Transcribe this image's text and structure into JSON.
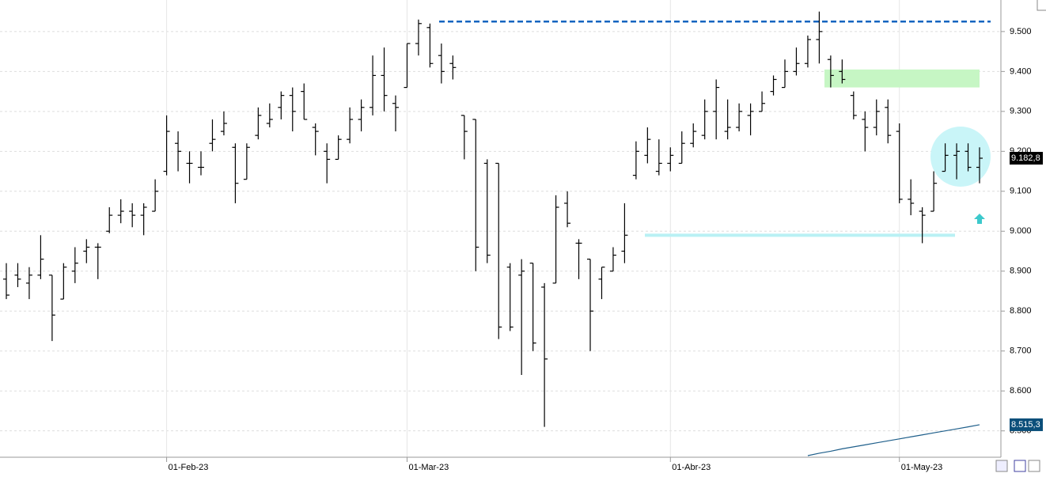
{
  "chart_data": {
    "type": "ohlc",
    "categories": [
      null,
      null,
      null,
      null,
      null,
      null,
      null,
      null,
      null,
      null,
      null,
      null,
      null,
      null,
      "01-Feb-23",
      null,
      null,
      null,
      null,
      null,
      null,
      null,
      null,
      null,
      null,
      null,
      null,
      null,
      null,
      null,
      null,
      null,
      null,
      null,
      null,
      "01-Mar-23",
      null,
      null,
      null,
      null,
      null,
      null,
      null,
      null,
      null,
      null,
      null,
      null,
      null,
      null,
      null,
      null,
      null,
      null,
      null,
      null,
      null,
      null,
      "01-Abr-23",
      null,
      null,
      null,
      null,
      null,
      null,
      null,
      null,
      null,
      null,
      null,
      null,
      null,
      null,
      null,
      null,
      null,
      null,
      null,
      "01-May-23",
      null,
      null,
      null,
      null,
      null,
      null,
      null
    ],
    "series": [
      {
        "color": "#000000",
        "open": [
          8880,
          8890,
          8870,
          8890,
          8890,
          8830,
          8900,
          8950,
          8960,
          9000,
          9040,
          9050,
          9040,
          9050,
          9150,
          9220,
          9170,
          9160,
          9220,
          9250,
          9210,
          9130,
          9240,
          9270,
          9310,
          9340,
          9350,
          9260,
          9200,
          9180,
          9230,
          9280,
          9310,
          9390,
          9320,
          9360,
          9470,
          9510,
          9440,
          9420,
          9290,
          9280,
          9170,
          9170,
          8910,
          8890,
          8920,
          8860,
          8870,
          9070,
          8970,
          8930,
          8880,
          8900,
          8950,
          9140,
          9190,
          9150,
          9170,
          9170,
          9220,
          9240,
          9300,
          9250,
          9260,
          9290,
          9300,
          9350,
          9360,
          9400,
          9420,
          9480,
          9430,
          9400,
          9340,
          9280,
          9260,
          9310,
          9250,
          9080,
          9050,
          9050,
          9150,
          9190,
          9200,
          9160
        ],
        "high": [
          8920,
          8920,
          8910,
          8990,
          8890,
          8920,
          8960,
          8980,
          8970,
          9060,
          9080,
          9070,
          9070,
          9130,
          9290,
          9250,
          9200,
          9200,
          9280,
          9300,
          9220,
          9220,
          9310,
          9320,
          9350,
          9360,
          9370,
          9270,
          9220,
          9240,
          9310,
          9330,
          9440,
          9460,
          9340,
          9470,
          9530,
          9520,
          9470,
          9440,
          9290,
          9280,
          9180,
          9170,
          8920,
          8930,
          8920,
          8870,
          9090,
          9100,
          8980,
          8930,
          8910,
          8960,
          9070,
          9225,
          9260,
          9230,
          9210,
          9250,
          9270,
          9330,
          9380,
          9330,
          9320,
          9320,
          9350,
          9390,
          9430,
          9460,
          9490,
          9550,
          9440,
          9430,
          9350,
          9300,
          9330,
          9330,
          9270,
          9130,
          9060,
          9150,
          9220,
          9220,
          9220,
          9210
        ],
        "low": [
          8830,
          8860,
          8830,
          8880,
          8725,
          8830,
          8870,
          8920,
          8880,
          8995,
          9020,
          9010,
          8990,
          9050,
          9140,
          9150,
          9120,
          9140,
          9200,
          9240,
          9070,
          9130,
          9230,
          9260,
          9280,
          9250,
          9280,
          9190,
          9120,
          9180,
          9220,
          9250,
          9290,
          9300,
          9250,
          9360,
          9440,
          9410,
          9370,
          9380,
          9180,
          8900,
          8920,
          8730,
          8750,
          8640,
          8700,
          8510,
          8870,
          9010,
          8880,
          8700,
          8830,
          8900,
          8920,
          9130,
          9170,
          9140,
          9150,
          9170,
          9210,
          9230,
          9230,
          9230,
          9250,
          9240,
          9300,
          9340,
          9360,
          9390,
          9410,
          9420,
          9360,
          9370,
          9280,
          9200,
          9240,
          9220,
          9070,
          9040,
          8970,
          9050,
          9150,
          9130,
          9150,
          9120
        ],
        "close": [
          8840,
          8880,
          8890,
          8930,
          8790,
          8910,
          8920,
          8960,
          8960,
          9040,
          9050,
          9040,
          9060,
          9100,
          9250,
          9200,
          9170,
          9160,
          9230,
          9270,
          9120,
          9210,
          9290,
          9280,
          9340,
          9300,
          9280,
          9250,
          9180,
          9230,
          9280,
          9310,
          9390,
          9340,
          9310,
          9470,
          9520,
          9420,
          9400,
          9410,
          9250,
          8960,
          8940,
          8760,
          8760,
          8900,
          8720,
          8680,
          9060,
          9020,
          8970,
          8800,
          8910,
          8940,
          8990,
          9200,
          9230,
          9170,
          9190,
          9220,
          9250,
          9300,
          9360,
          9260,
          9300,
          9300,
          9320,
          9380,
          9400,
          9420,
          9480,
          9500,
          9390,
          9380,
          9290,
          9260,
          9300,
          9240,
          9080,
          9070,
          9040,
          9120,
          9190,
          9200,
          9160,
          9182.8
        ]
      },
      {
        "color": "#1f5f8b",
        "values": [
          null,
          null,
          null,
          null,
          null,
          null,
          null,
          null,
          null,
          null,
          null,
          null,
          null,
          null,
          null,
          null,
          null,
          null,
          null,
          null,
          null,
          null,
          null,
          null,
          null,
          null,
          null,
          null,
          null,
          null,
          null,
          null,
          null,
          null,
          null,
          null,
          null,
          null,
          null,
          null,
          null,
          null,
          null,
          null,
          null,
          null,
          null,
          null,
          null,
          null,
          null,
          null,
          null,
          null,
          null,
          null,
          null,
          null,
          null,
          null,
          null,
          null,
          null,
          null,
          null,
          null,
          null,
          null,
          null,
          null,
          8438,
          8444,
          8449,
          8455,
          8460,
          8465,
          8470,
          8475,
          8480,
          8485,
          8490,
          8495,
          8500,
          8505,
          8510,
          8515.3
        ]
      }
    ],
    "ylim": [
      8434,
      9579
    ],
    "yticks": [
      {
        "value": 8500,
        "label": "8.500"
      },
      {
        "value": 8600,
        "label": "8.600"
      },
      {
        "value": 8700,
        "label": "8.700"
      },
      {
        "value": 8800,
        "label": "8.800"
      },
      {
        "value": 8900,
        "label": "8.900"
      },
      {
        "value": 9000,
        "label": "9.000"
      },
      {
        "value": 9100,
        "label": "9.100"
      },
      {
        "value": 9200,
        "label": "9.200"
      },
      {
        "value": 9300,
        "label": "9.300"
      },
      {
        "value": 9400,
        "label": "9.400"
      },
      {
        "value": 9500,
        "label": "9.500"
      }
    ],
    "grid": true,
    "price_labels": [
      {
        "value": 9182.8,
        "label": "9.182,8",
        "color": "#000000"
      },
      {
        "value": 8515.3,
        "label": "8.515,3",
        "color": "#0b4f7a"
      }
    ],
    "lines": [
      {
        "value": 9525,
        "color": "#1565c0",
        "style": "dashed"
      },
      {
        "value": 8990,
        "color": "#b9f1f4",
        "style": "solid"
      }
    ],
    "zones": [
      {
        "low": 9360,
        "high": 9405,
        "color": "#c6f6c4"
      }
    ]
  }
}
